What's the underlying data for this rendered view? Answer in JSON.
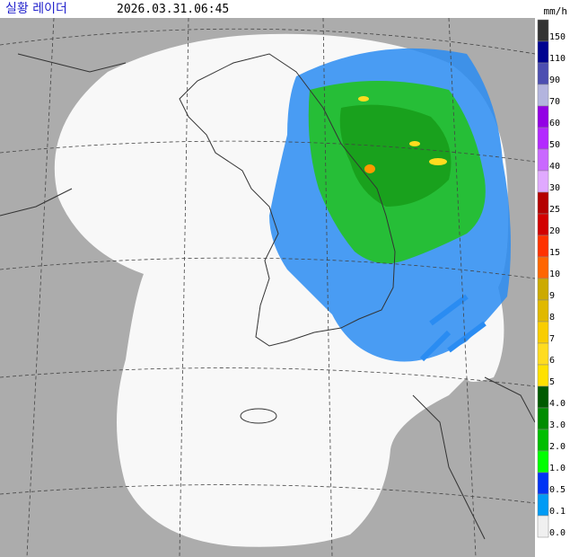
{
  "header": {
    "title": "실황 레이더",
    "timestamp": "2026.03.31.06:45",
    "unit": "mm/h"
  },
  "legend": [
    {
      "label": "150",
      "color": "#333333"
    },
    {
      "label": "110",
      "color": "#000390"
    },
    {
      "label": "90",
      "color": "#4c4eb1"
    },
    {
      "label": "70",
      "color": "#b3b4de"
    },
    {
      "label": "60",
      "color": "#9300e4"
    },
    {
      "label": "50",
      "color": "#b329ff"
    },
    {
      "label": "40",
      "color": "#c969ff"
    },
    {
      "label": "30",
      "color": "#e0a9ff"
    },
    {
      "label": "25",
      "color": "#b40000"
    },
    {
      "label": "20",
      "color": "#d20000"
    },
    {
      "label": "15",
      "color": "#ff3200"
    },
    {
      "label": "10",
      "color": "#ff6600"
    },
    {
      "label": "9",
      "color": "#ccaa00"
    },
    {
      "label": "8",
      "color": "#e0b900"
    },
    {
      "label": "7",
      "color": "#f9cd00"
    },
    {
      "label": "6",
      "color": "#ffdc1f"
    },
    {
      "label": "5",
      "color": "#ffe100"
    },
    {
      "label": "4.0",
      "color": "#005a00"
    },
    {
      "label": "3.0",
      "color": "#008c00"
    },
    {
      "label": "2.0",
      "color": "#00be00"
    },
    {
      "label": "1.0",
      "color": "#00ff00"
    },
    {
      "label": "0.5",
      "color": "#0033f5"
    },
    {
      "label": "0.1",
      "color": "#009bf5"
    },
    {
      "label": "0.0",
      "color": "#f0f0f0"
    }
  ]
}
